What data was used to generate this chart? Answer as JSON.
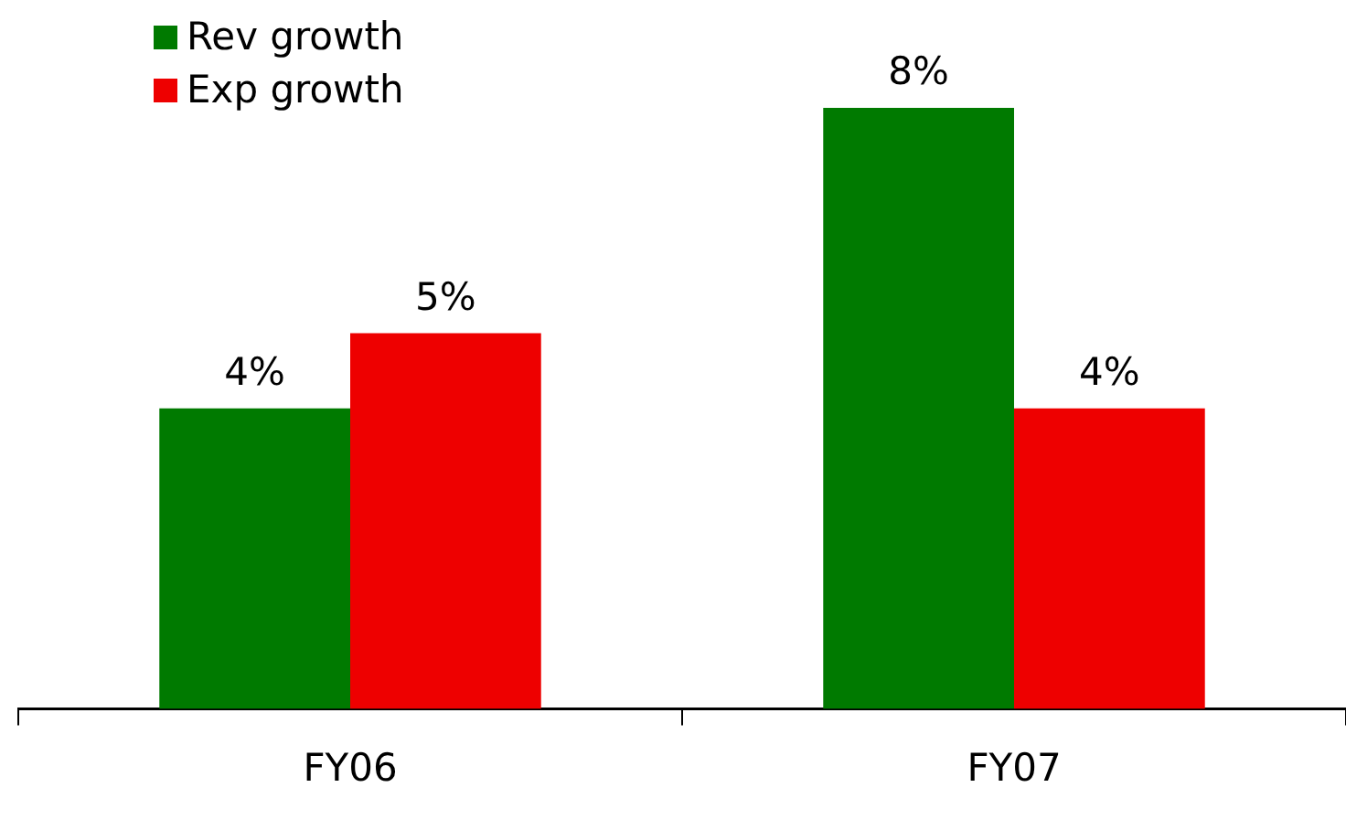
{
  "chart_data": {
    "type": "bar",
    "categories": [
      "FY06",
      "FY07"
    ],
    "series": [
      {
        "name": "Rev growth",
        "color": "#007a00",
        "values": [
          4,
          8
        ],
        "value_labels": [
          "4%",
          "8%"
        ]
      },
      {
        "name": "Exp growth",
        "color": "#ee0000",
        "values": [
          5,
          4
        ],
        "value_labels": [
          "5%",
          "4%"
        ]
      }
    ],
    "legend": "top left"
  }
}
